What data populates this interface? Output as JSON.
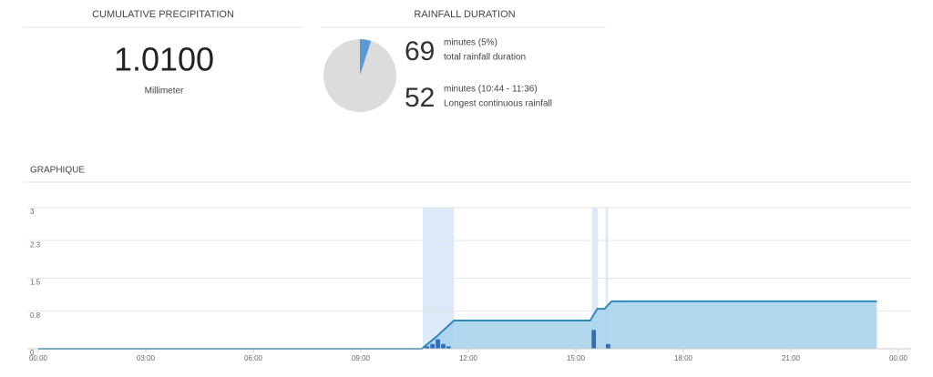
{
  "precipitation": {
    "title": "CUMULATIVE PRECIPITATION",
    "value": "1.0100",
    "unit": "Millimeter"
  },
  "rainfall_duration": {
    "title": "RAINFALL DURATION",
    "pie": {
      "values": [
        5,
        95
      ],
      "colors": [
        "#5b9bd5",
        "#dcdcdc"
      ]
    },
    "stats": [
      {
        "value": 69,
        "label": "minutes (5%)",
        "description": "total rainfall duration"
      },
      {
        "value": 52,
        "label": "minutes (10:44 - 11:36)",
        "description": "Longest continuous rainfall"
      }
    ]
  },
  "chart_data": {
    "type": "line",
    "title": "GRAPHIQUE",
    "xlim": [
      0,
      24
    ],
    "xticks": [
      {
        "value": 0,
        "label": "00:00"
      },
      {
        "value": 3,
        "label": "03:00"
      },
      {
        "value": 6,
        "label": "06:00"
      },
      {
        "value": 9,
        "label": "09:00"
      },
      {
        "value": 12,
        "label": "12:00"
      },
      {
        "value": 15,
        "label": "15:00"
      },
      {
        "value": 18,
        "label": "18:00"
      },
      {
        "value": 21,
        "label": "21:00"
      },
      {
        "value": 24,
        "label": "00:00"
      }
    ],
    "ylim": [
      0,
      3
    ],
    "yticks": [
      0,
      0.8,
      1.5,
      2.3,
      3
    ],
    "grid": true,
    "highlight_color": "#dbe9f8",
    "highlights": [
      {
        "start": 10.73,
        "end": 11.6
      },
      {
        "start": 15.45,
        "end": 15.62
      },
      {
        "start": 15.83,
        "end": 15.9
      }
    ],
    "series": [
      {
        "type": "area",
        "color": "#2f8ab9",
        "fill": "#a8d4ea",
        "x": [
          0,
          10.7,
          11.1,
          11.6,
          15.4,
          15.6,
          15.8,
          16,
          23.4
        ],
        "values": [
          0,
          0,
          0.25,
          0.6,
          0.6,
          0.85,
          0.85,
          1.01,
          1.01
        ]
      },
      {
        "type": "bar",
        "color": "#2f6db5",
        "x": [
          10.85,
          11.0,
          11.15,
          11.3,
          11.45,
          15.5,
          15.9
        ],
        "values": [
          0.05,
          0.1,
          0.2,
          0.1,
          0.05,
          0.4,
          0.1
        ]
      }
    ]
  }
}
